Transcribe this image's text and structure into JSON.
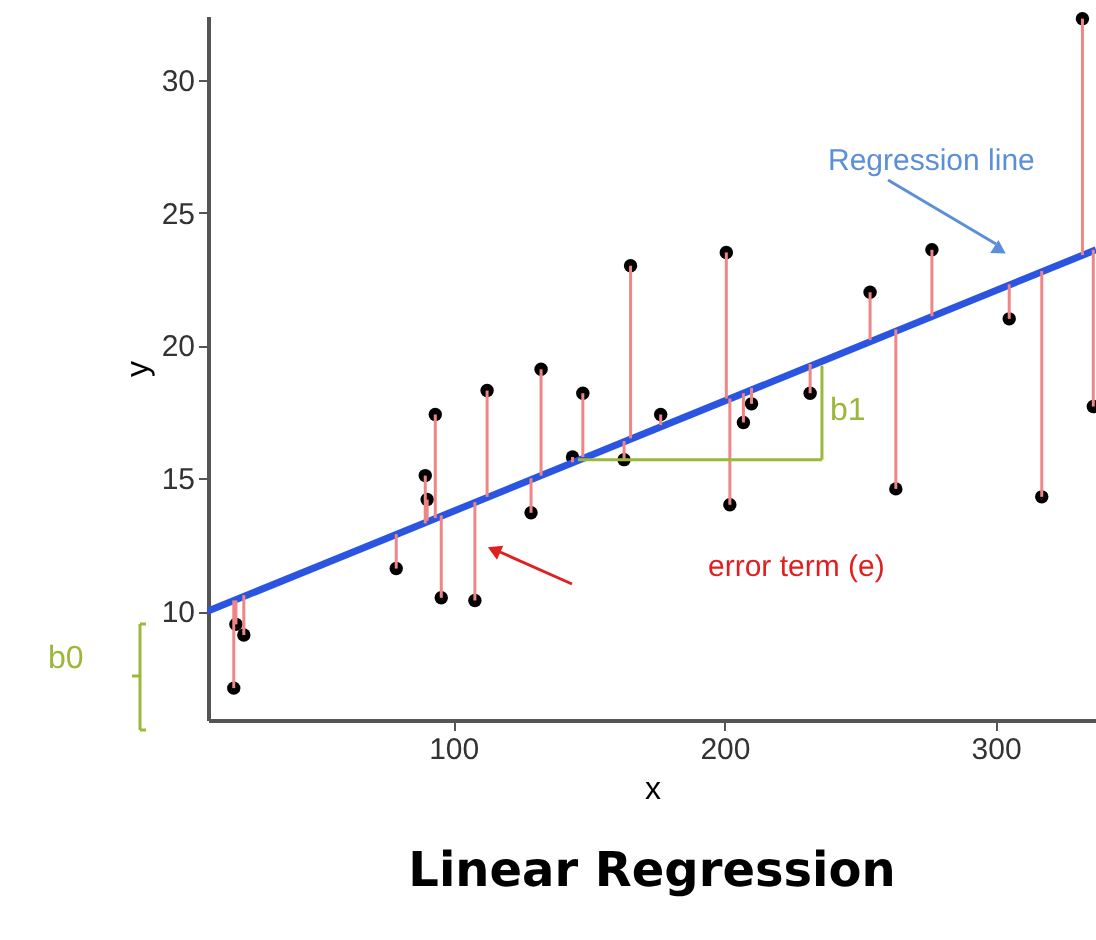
{
  "chart_data": {
    "type": "scatter",
    "title": "Linear Regression",
    "xlabel": "x",
    "ylabel": "y",
    "xlim": [
      9.6,
      337
    ],
    "ylim": [
      5.9,
      32.4
    ],
    "xticks": [
      100,
      200,
      300
    ],
    "yticks": [
      10,
      15,
      20,
      25,
      30
    ],
    "grid": false,
    "marker": "circle",
    "annotations": [
      "Regression line",
      "error term (e)",
      {
        "text": "b1",
        "x": 146,
        "y": 15.7
      },
      "b0"
    ],
    "series": [
      {
        "color": "#000000",
        "x": [
          19.1,
          19.9,
          22.8,
          79,
          89.7,
          90.4,
          93.4,
          95.6,
          108,
          112.5,
          128.7,
          132.4,
          144,
          147.8,
          163,
          165.4,
          176.5,
          200.7,
          202,
          207,
          210,
          231.6,
          253.7,
          263.2,
          276.5,
          305,
          317,
          332,
          336
        ],
        "values": [
          7.1,
          9.5,
          9.1,
          11.6,
          15.1,
          14.2,
          17.4,
          10.5,
          10.4,
          18.3,
          13.7,
          19.1,
          15.8,
          18.2,
          15.7,
          23.0,
          17.4,
          23.5,
          14.0,
          17.1,
          17.8,
          18.2,
          22.0,
          14.6,
          23.6,
          21.0,
          14.3,
          32.3,
          17.7
        ],
        "errors": [
          [
            7.1,
            10.4
          ],
          [
            9.5,
            10.4
          ],
          [
            9.1,
            10.6
          ],
          [
            11.6,
            12.9
          ],
          [
            13.3,
            15.1
          ],
          [
            13.4,
            14.2
          ],
          [
            13.5,
            17.4
          ],
          [
            10.5,
            13.6
          ],
          [
            10.4,
            14.1
          ],
          [
            14.3,
            18.3
          ],
          [
            13.7,
            15.0
          ],
          [
            15.1,
            19.1
          ],
          [
            15.6,
            15.8
          ],
          [
            15.8,
            18.2
          ],
          [
            15.7,
            16.4
          ],
          [
            16.5,
            23.0
          ],
          [
            17.0,
            17.4
          ],
          [
            18.0,
            23.5
          ],
          [
            14.0,
            18.0
          ],
          [
            17.1,
            18.2
          ],
          [
            17.8,
            18.4
          ],
          [
            18.2,
            19.3
          ],
          [
            20.2,
            22.0
          ],
          [
            14.6,
            20.6
          ],
          [
            21.1,
            23.6
          ],
          [
            21.0,
            22.3
          ],
          [
            14.3,
            22.8
          ],
          [
            23.4,
            32.3
          ],
          [
            17.7,
            23.6
          ]
        ]
      },
      {
        "type": "line",
        "color": "#2b55e0",
        "x": [
          9.6,
          337
        ],
        "values": [
          10.0,
          23.6
        ],
        "marker": "none",
        "line_style": "solid"
      }
    ]
  }
}
